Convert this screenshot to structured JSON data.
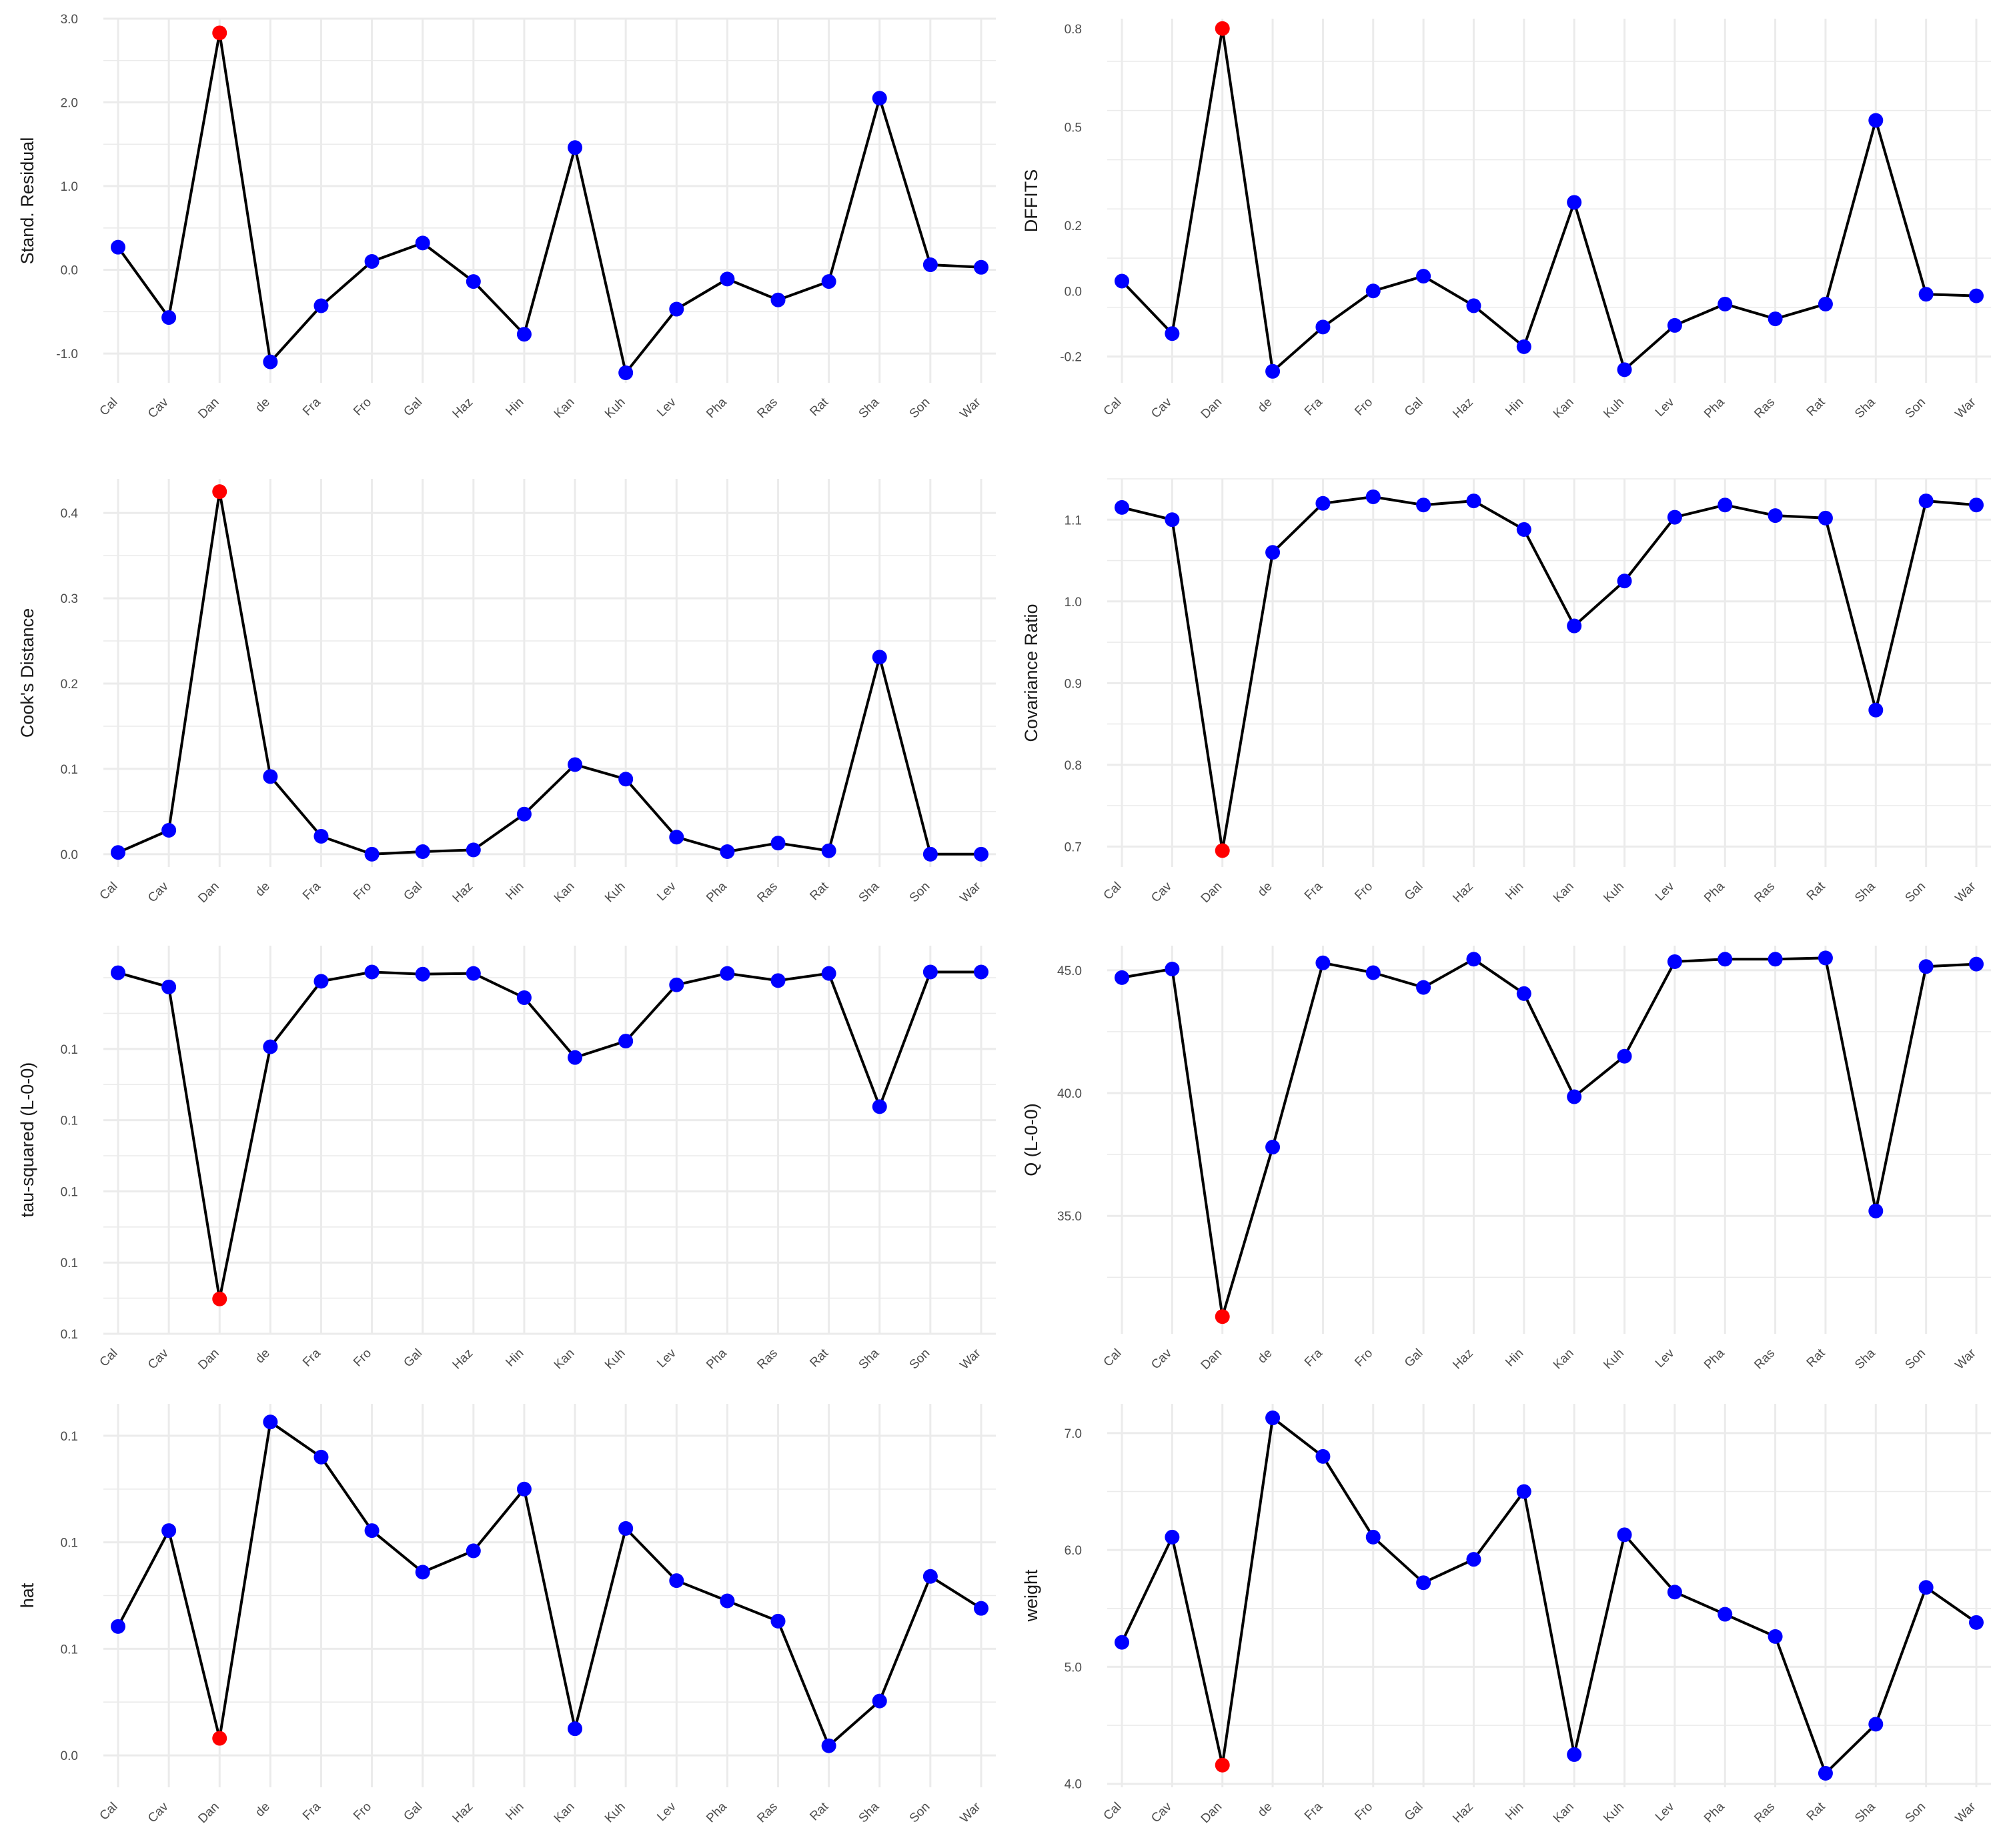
{
  "chart_data": [
    {
      "type": "line",
      "ylabel": "Stand. Residual",
      "categories": [
        "Cal",
        "Cav",
        "Dan",
        "de",
        "Fra",
        "Fro",
        "Gal",
        "Haz",
        "Hin",
        "Kan",
        "Kuh",
        "Lev",
        "Pha",
        "Ras",
        "Rat",
        "Sha",
        "Son",
        "War"
      ],
      "values": [
        0.27,
        -0.57,
        2.83,
        -1.1,
        -0.43,
        0.1,
        0.32,
        -0.14,
        -0.77,
        1.46,
        -1.23,
        -0.47,
        -0.11,
        -0.36,
        -0.14,
        2.05,
        0.06,
        0.03
      ],
      "highlight_index": 2,
      "ylim": [
        -1.35,
        3.0
      ],
      "yticks": [
        3.0,
        2.0,
        1.0,
        0.0,
        -1.0
      ],
      "ytick_labels": [
        "3.0",
        "2.0",
        "1.0",
        "0.0",
        "-1.0"
      ]
    },
    {
      "type": "line",
      "ylabel": "DFFITS",
      "categories": [
        "Cal",
        "Cav",
        "Dan",
        "de",
        "Fra",
        "Fro",
        "Gal",
        "Haz",
        "Hin",
        "Kan",
        "Kuh",
        "Lev",
        "Pha",
        "Ras",
        "Rat",
        "Sha",
        "Son",
        "War"
      ],
      "values": [
        0.03,
        -0.13,
        0.8,
        -0.245,
        -0.11,
        0.0,
        0.045,
        -0.045,
        -0.17,
        0.27,
        -0.24,
        -0.105,
        -0.04,
        -0.085,
        -0.04,
        0.52,
        -0.01,
        -0.015
      ],
      "highlight_index": 2,
      "ylim": [
        -0.28,
        0.83
      ],
      "yticks": [
        0.8,
        0.5,
        0.2,
        0.0,
        -0.2
      ],
      "ytick_labels": [
        "0.8",
        "0.5",
        "0.2",
        "0.0",
        "-0.2"
      ]
    },
    {
      "type": "line",
      "ylabel": "Cook's Distance",
      "categories": [
        "Cal",
        "Cav",
        "Dan",
        "de",
        "Fra",
        "Fro",
        "Gal",
        "Haz",
        "Hin",
        "Kan",
        "Kuh",
        "Lev",
        "Pha",
        "Ras",
        "Rat",
        "Sha",
        "Son",
        "War"
      ],
      "values": [
        0.002,
        0.028,
        0.425,
        0.091,
        0.021,
        0.0,
        0.003,
        0.005,
        0.047,
        0.105,
        0.088,
        0.02,
        0.003,
        0.013,
        0.004,
        0.231,
        0.0,
        0.0
      ],
      "highlight_index": 2,
      "ylim": [
        -0.015,
        0.44
      ],
      "yticks": [
        0.4,
        0.3,
        0.2,
        0.1,
        0.0
      ],
      "ytick_labels": [
        "0.4",
        "0.3",
        "0.2",
        "0.1",
        "0.0"
      ]
    },
    {
      "type": "line",
      "ylabel": "Covariance Ratio",
      "categories": [
        "Cal",
        "Cav",
        "Dan",
        "de",
        "Fra",
        "Fro",
        "Gal",
        "Haz",
        "Hin",
        "Kan",
        "Kuh",
        "Lev",
        "Pha",
        "Ras",
        "Rat",
        "Sha",
        "Son",
        "War"
      ],
      "values": [
        1.115,
        1.1,
        0.695,
        1.06,
        1.12,
        1.128,
        1.118,
        1.123,
        1.088,
        0.97,
        1.025,
        1.103,
        1.118,
        1.105,
        1.102,
        0.867,
        1.123,
        1.118
      ],
      "highlight_index": 2,
      "ylim": [
        0.675,
        1.15
      ],
      "yticks": [
        1.1,
        1.0,
        0.9,
        0.8,
        0.7
      ],
      "ytick_labels": [
        "1.1",
        "1.0",
        "0.9",
        "0.8",
        "0.7"
      ]
    },
    {
      "type": "line",
      "ylabel": "tau-squared (L-0-0)",
      "categories": [
        "Cal",
        "Cav",
        "Dan",
        "de",
        "Fra",
        "Fro",
        "Gal",
        "Haz",
        "Hin",
        "Kan",
        "Kuh",
        "Lev",
        "Pha",
        "Ras",
        "Rat",
        "Sha",
        "Son",
        "War"
      ],
      "values": [
        0.1507,
        0.1487,
        0.1049,
        0.1403,
        0.1495,
        0.1508,
        0.1505,
        0.1506,
        0.1472,
        0.1388,
        0.1411,
        0.149,
        0.1506,
        0.1496,
        0.1506,
        0.1319,
        0.1508,
        0.1508
      ],
      "highlight_index": 2,
      "ylim": [
        0.1,
        0.1545
      ],
      "yticks": [
        0.14,
        0.13,
        0.12,
        0.11,
        0.1
      ],
      "ytick_labels": [
        "0.1",
        "0.1",
        "0.1",
        "0.1",
        "0.1"
      ]
    },
    {
      "type": "line",
      "ylabel": "Q (L-0-0)",
      "categories": [
        "Cal",
        "Cav",
        "Dan",
        "de",
        "Fra",
        "Fro",
        "Gal",
        "Haz",
        "Hin",
        "Kan",
        "Kuh",
        "Lev",
        "Pha",
        "Ras",
        "Rat",
        "Sha",
        "Son",
        "War"
      ],
      "values": [
        44.7,
        45.05,
        30.9,
        37.8,
        45.3,
        44.9,
        44.3,
        45.45,
        44.05,
        39.85,
        41.5,
        45.35,
        45.45,
        45.45,
        45.5,
        35.2,
        45.15,
        45.25
      ],
      "highlight_index": 2,
      "ylim": [
        30.2,
        46.0
      ],
      "yticks": [
        45.0,
        40.0,
        35.0
      ],
      "ytick_labels": [
        "45.0",
        "40.0",
        "35.0"
      ]
    },
    {
      "type": "line",
      "ylabel": "hat",
      "categories": [
        "Cal",
        "Cav",
        "Dan",
        "de",
        "Fra",
        "Fro",
        "Gal",
        "Haz",
        "Hin",
        "Kan",
        "Kuh",
        "Lev",
        "Pha",
        "Ras",
        "Rat",
        "Sha",
        "Son",
        "War"
      ],
      "values": [
        0.0521,
        0.0611,
        0.0416,
        0.0713,
        0.068,
        0.0611,
        0.0572,
        0.0592,
        0.065,
        0.0425,
        0.0613,
        0.0564,
        0.0545,
        0.0526,
        0.0409,
        0.0451,
        0.0568,
        0.0538
      ],
      "highlight_index": 2,
      "ylim": [
        0.037,
        0.073
      ],
      "yticks": [
        0.07,
        0.06,
        0.05,
        0.04
      ],
      "ytick_labels": [
        "0.1",
        "0.1",
        "0.1",
        "0.0"
      ]
    },
    {
      "type": "line",
      "ylabel": "weight",
      "categories": [
        "Cal",
        "Cav",
        "Dan",
        "de",
        "Fra",
        "Fro",
        "Gal",
        "Haz",
        "Hin",
        "Kan",
        "Kuh",
        "Lev",
        "Pha",
        "Ras",
        "Rat",
        "Sha",
        "Son",
        "War"
      ],
      "values": [
        5.21,
        6.11,
        4.16,
        7.13,
        6.8,
        6.11,
        5.72,
        5.92,
        6.5,
        4.25,
        6.13,
        5.64,
        5.45,
        5.26,
        4.09,
        4.51,
        5.68,
        5.38
      ],
      "highlight_index": 2,
      "ylim": [
        3.97,
        7.25
      ],
      "yticks": [
        7.0,
        6.0,
        5.0,
        4.0
      ],
      "ytick_labels": [
        "7.0",
        "6.0",
        "5.0",
        "4.0"
      ]
    }
  ],
  "colors": {
    "point": "#0000ff",
    "highlight": "#ff0000",
    "line": "#000000",
    "grid": "#ebebeb"
  }
}
